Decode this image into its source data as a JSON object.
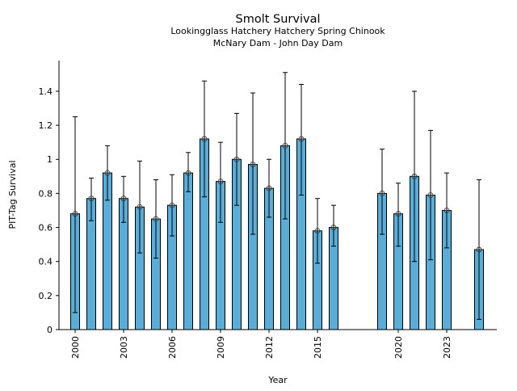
{
  "chart_data": {
    "type": "bar",
    "title": "Smolt Survival",
    "subtitle_lines": [
      "Lookingglass Hatchery Hatchery Spring Chinook",
      "McNary Dam - John Day Dam"
    ],
    "xlabel": "Year",
    "ylabel": "PIT-Tag Survival",
    "xlim": [
      1999,
      2026
    ],
    "ylim": [
      0,
      1.58
    ],
    "xticks": [
      2000,
      2003,
      2006,
      2009,
      2012,
      2015,
      2020,
      2023
    ],
    "yticks": [
      0,
      0.2,
      0.4,
      0.6,
      0.8,
      1,
      1.2,
      1.4
    ],
    "ytick_labels": [
      "0",
      "0.2",
      "0.4",
      "0.6",
      "0.8",
      "1",
      "1.2",
      "1.4"
    ],
    "grid": false,
    "bar_color": "#5aadd6",
    "series": [
      {
        "name": "PIT-Tag Survival",
        "points": [
          {
            "year": 2000,
            "value": 0.68,
            "lower": 0.1,
            "upper": 1.25
          },
          {
            "year": 2001,
            "value": 0.77,
            "lower": 0.64,
            "upper": 0.89
          },
          {
            "year": 2002,
            "value": 0.92,
            "lower": 0.76,
            "upper": 1.08
          },
          {
            "year": 2003,
            "value": 0.77,
            "lower": 0.63,
            "upper": 0.9
          },
          {
            "year": 2004,
            "value": 0.72,
            "lower": 0.45,
            "upper": 0.99
          },
          {
            "year": 2005,
            "value": 0.65,
            "lower": 0.42,
            "upper": 0.88
          },
          {
            "year": 2006,
            "value": 0.73,
            "lower": 0.55,
            "upper": 0.91
          },
          {
            "year": 2007,
            "value": 0.92,
            "lower": 0.81,
            "upper": 1.04
          },
          {
            "year": 2008,
            "value": 1.12,
            "lower": 0.78,
            "upper": 1.46
          },
          {
            "year": 2009,
            "value": 0.87,
            "lower": 0.63,
            "upper": 1.1
          },
          {
            "year": 2010,
            "value": 1.0,
            "lower": 0.73,
            "upper": 1.27
          },
          {
            "year": 2011,
            "value": 0.97,
            "lower": 0.56,
            "upper": 1.39
          },
          {
            "year": 2012,
            "value": 0.83,
            "lower": 0.66,
            "upper": 1.0
          },
          {
            "year": 2013,
            "value": 1.08,
            "lower": 0.65,
            "upper": 1.51
          },
          {
            "year": 2014,
            "value": 1.12,
            "lower": 0.79,
            "upper": 1.44
          },
          {
            "year": 2015,
            "value": 0.58,
            "lower": 0.39,
            "upper": 0.77
          },
          {
            "year": 2016,
            "value": 0.6,
            "lower": 0.49,
            "upper": 0.73
          },
          {
            "year": 2019,
            "value": 0.8,
            "lower": 0.56,
            "upper": 1.06
          },
          {
            "year": 2020,
            "value": 0.68,
            "lower": 0.49,
            "upper": 0.86
          },
          {
            "year": 2021,
            "value": 0.9,
            "lower": 0.4,
            "upper": 1.4
          },
          {
            "year": 2022,
            "value": 0.79,
            "lower": 0.41,
            "upper": 1.17
          },
          {
            "year": 2023,
            "value": 0.7,
            "lower": 0.48,
            "upper": 0.92
          },
          {
            "year": 2025,
            "value": 0.47,
            "lower": 0.06,
            "upper": 0.88
          }
        ]
      }
    ]
  }
}
